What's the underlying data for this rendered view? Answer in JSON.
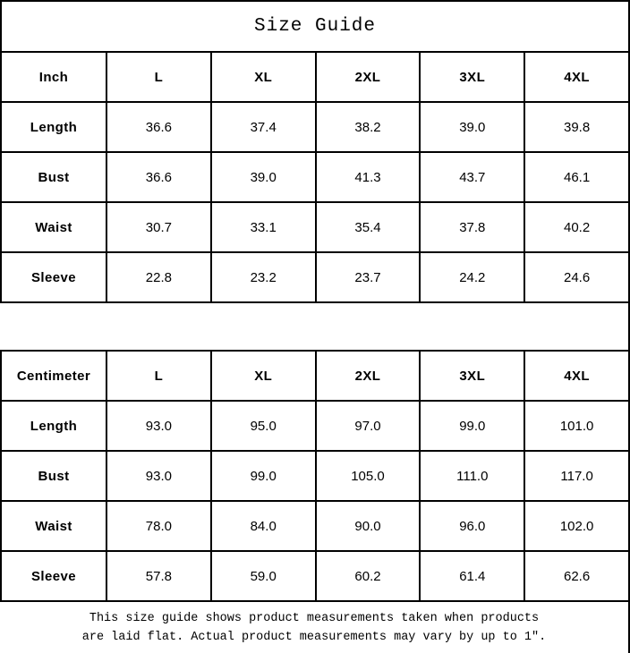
{
  "title": "Size Guide",
  "chart_data": [
    {
      "type": "table",
      "name": "inch-size-table",
      "unit": "Inch",
      "header": [
        "Inch",
        "L",
        "XL",
        "2XL",
        "3XL",
        "4XL"
      ],
      "rows": [
        {
          "label": "Length",
          "values": [
            "36.6",
            "37.4",
            "38.2",
            "39.0",
            "39.8"
          ]
        },
        {
          "label": "Bust",
          "values": [
            "36.6",
            "39.0",
            "41.3",
            "43.7",
            "46.1"
          ]
        },
        {
          "label": "Waist",
          "values": [
            "30.7",
            "33.1",
            "35.4",
            "37.8",
            "40.2"
          ]
        },
        {
          "label": "Sleeve",
          "values": [
            "22.8",
            "23.2",
            "23.7",
            "24.2",
            "24.6"
          ]
        }
      ]
    },
    {
      "type": "table",
      "name": "centimeter-size-table",
      "unit": "Centimeter",
      "header": [
        "Centimeter",
        "L",
        "XL",
        "2XL",
        "3XL",
        "4XL"
      ],
      "rows": [
        {
          "label": "Length",
          "values": [
            "93.0",
            "95.0",
            "97.0",
            "99.0",
            "101.0"
          ]
        },
        {
          "label": "Bust",
          "values": [
            "93.0",
            "99.0",
            "105.0",
            "111.0",
            "117.0"
          ]
        },
        {
          "label": "Waist",
          "values": [
            "78.0",
            "84.0",
            "90.0",
            "96.0",
            "102.0"
          ]
        },
        {
          "label": "Sleeve",
          "values": [
            "57.8",
            "59.0",
            "60.2",
            "61.4",
            "62.6"
          ]
        }
      ]
    }
  ],
  "footnote": {
    "line1": "This size guide shows product measurements taken when products",
    "line2": "are laid flat. Actual product measurements may vary by up to 1″."
  },
  "colors": {
    "border": "#000000",
    "text": "#000000",
    "background": "#ffffff"
  }
}
